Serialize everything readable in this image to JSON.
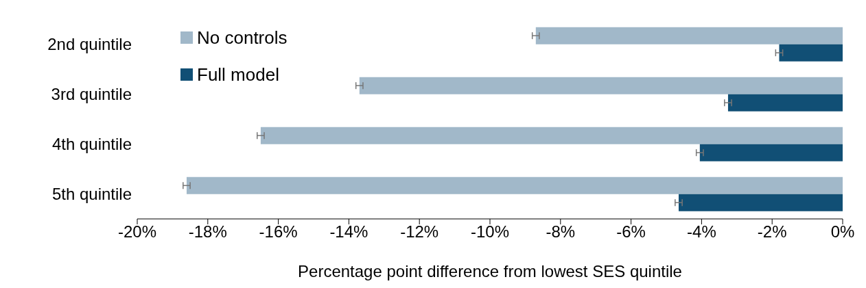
{
  "chart_data": {
    "type": "bar",
    "orientation": "horizontal",
    "xlabel": "Percentage point difference from lowest SES quintile",
    "categories": [
      "2nd quintile",
      "3rd quintile",
      "4th quintile",
      "5th quintile"
    ],
    "series": [
      {
        "name": "No controls",
        "color": "#a1b8c9",
        "values": [
          -8.7,
          -13.7,
          -16.5,
          -18.6
        ],
        "errors": [
          0.1,
          0.1,
          0.1,
          0.1
        ]
      },
      {
        "name": "Full model",
        "color": "#114f75",
        "values": [
          -1.8,
          -3.25,
          -4.05,
          -4.65
        ],
        "errors": [
          0.1,
          0.1,
          0.1,
          0.1
        ]
      }
    ],
    "xlim": [
      -20,
      0
    ],
    "xticks": [
      {
        "value": -20,
        "label": "-20%"
      },
      {
        "value": -18,
        "label": "-18%"
      },
      {
        "value": -16,
        "label": "-16%"
      },
      {
        "value": -14,
        "label": "-14%"
      },
      {
        "value": -12,
        "label": "-12%"
      },
      {
        "value": -10,
        "label": "-10%"
      },
      {
        "value": -8,
        "label": "-8%"
      },
      {
        "value": -6,
        "label": "-6%"
      },
      {
        "value": -4,
        "label": "-4%"
      },
      {
        "value": -2,
        "label": "-2%"
      },
      {
        "value": 0,
        "label": "0%"
      }
    ],
    "grid": false,
    "legend": "top left"
  }
}
